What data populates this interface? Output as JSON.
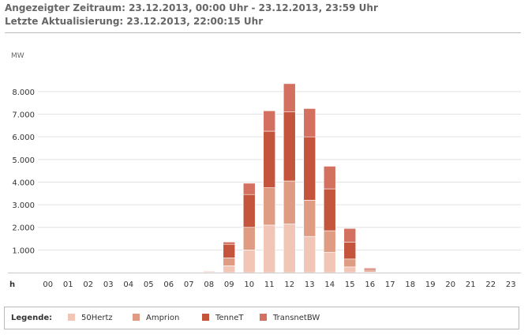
{
  "header": {
    "period_line": "Angezeigter Zeitraum: 23.12.2013, 00:00 Uhr - 23.12.2013, 23:59 Uhr",
    "update_line": "Letzte Aktualisierung: 23.12.2013, 22:00:15 Uhr"
  },
  "chart_data": {
    "type": "bar",
    "stacked": true,
    "ylabel": "MW",
    "xlabel": "h",
    "ylim": [
      0,
      8800
    ],
    "yticks": [
      1000,
      2000,
      3000,
      4000,
      5000,
      6000,
      7000,
      8000
    ],
    "ytick_labels": [
      "1.000",
      "2.000",
      "3.000",
      "4.000",
      "5.000",
      "6.000",
      "7.000",
      "8.000"
    ],
    "grid": true,
    "legend_position": "bottom",
    "categories": [
      "00",
      "01",
      "02",
      "03",
      "04",
      "05",
      "06",
      "07",
      "08",
      "09",
      "10",
      "11",
      "12",
      "13",
      "14",
      "15",
      "16",
      "17",
      "18",
      "19",
      "20",
      "21",
      "22",
      "23"
    ],
    "series": [
      {
        "name": "50Hertz",
        "color": "#f2c6b6",
        "values": [
          0,
          0,
          0,
          0,
          0,
          0,
          0,
          0,
          10,
          300,
          1000,
          2100,
          2150,
          1600,
          900,
          250,
          30,
          0,
          0,
          0,
          0,
          0,
          0,
          0
        ]
      },
      {
        "name": "Amprion",
        "color": "#e09c82",
        "values": [
          0,
          0,
          0,
          0,
          0,
          0,
          0,
          0,
          20,
          350,
          1000,
          1650,
          1900,
          1600,
          950,
          350,
          50,
          0,
          0,
          0,
          0,
          0,
          0,
          0
        ]
      },
      {
        "name": "TenneT",
        "color": "#c4543c",
        "values": [
          0,
          0,
          0,
          0,
          0,
          0,
          0,
          0,
          30,
          600,
          1450,
          2500,
          3050,
          2800,
          1850,
          750,
          60,
          0,
          0,
          0,
          0,
          0,
          0,
          0
        ]
      },
      {
        "name": "TransnetBW",
        "color": "#d47060",
        "values": [
          0,
          0,
          0,
          0,
          0,
          0,
          0,
          0,
          10,
          100,
          500,
          900,
          1250,
          1250,
          1000,
          600,
          60,
          0,
          0,
          0,
          0,
          0,
          0,
          0
        ]
      }
    ]
  },
  "legend": {
    "title": "Legende:"
  }
}
